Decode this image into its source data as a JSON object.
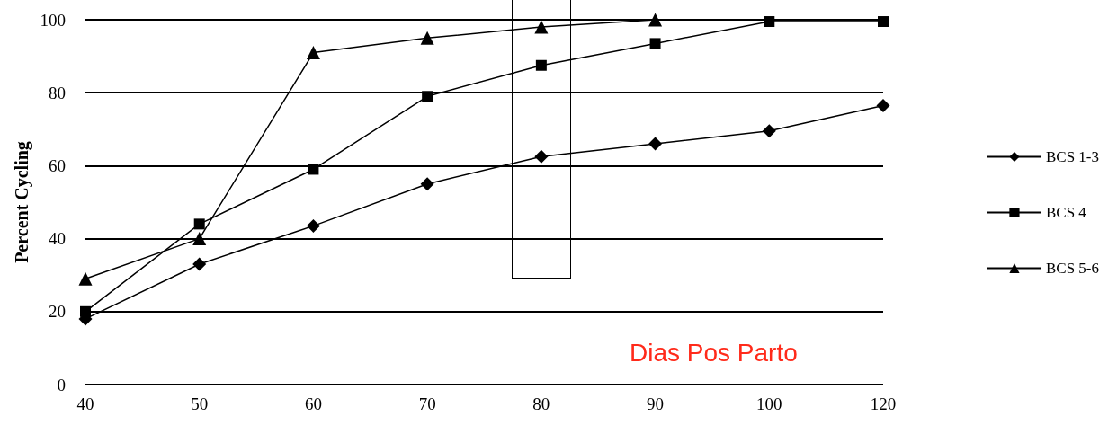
{
  "chart_data": {
    "type": "line",
    "ylabel": "Percent Cycling",
    "annotations": [
      "Dias Pos Parto"
    ],
    "categories": [
      "40",
      "50",
      "60",
      "70",
      "80",
      "90",
      "100",
      "120"
    ],
    "series": [
      {
        "name": "BCS 1-3",
        "color": "#000000",
        "marker": "diamond",
        "values": [
          18,
          33,
          43.5,
          55,
          62.5,
          66,
          69.5,
          76.5
        ]
      },
      {
        "name": "BCS 4",
        "color": "#000000",
        "marker": "square",
        "values": [
          20,
          44,
          59,
          79,
          87.5,
          93.5,
          99.5,
          99.5
        ]
      },
      {
        "name": "BCS 5-6",
        "color": "#000000",
        "marker": "triangle",
        "values": [
          29,
          40,
          91,
          95,
          98,
          100,
          null,
          null
        ]
      }
    ],
    "ylim": [
      0,
      100
    ],
    "yticks": [
      0,
      20,
      40,
      60,
      80,
      100
    ],
    "grid": "y",
    "legend": "right",
    "line_style": "solid"
  }
}
